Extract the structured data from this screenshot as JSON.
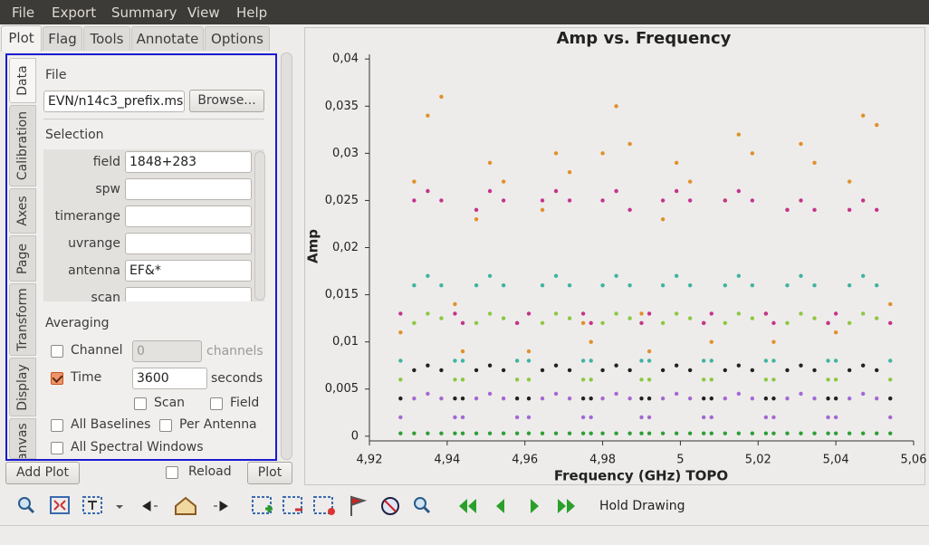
{
  "menu": [
    "File",
    "Export",
    "Summary",
    "View",
    "Help"
  ],
  "tabs": [
    "Plot",
    "Flag",
    "Tools",
    "Annotate",
    "Options"
  ],
  "side_tabs": [
    "Data",
    "Calibration",
    "Axes",
    "Page",
    "Transform",
    "Display",
    "Canvas"
  ],
  "data_tab": {
    "file_heading": "File",
    "file_path": "EVN/n14c3_prefix.ms",
    "browse": "Browse...",
    "selection_heading": "Selection",
    "fields": [
      {
        "label": "field",
        "value": "1848+283"
      },
      {
        "label": "spw"
      },
      {
        "label": "timerange"
      },
      {
        "label": "uvrange"
      },
      {
        "label": "antenna",
        "value": "EF&*"
      },
      {
        "label": "scan"
      }
    ],
    "averaging_heading": "Averaging",
    "channel": {
      "label": "Channel",
      "checked": false,
      "value": "0",
      "unit": "channels"
    },
    "time": {
      "label": "Time",
      "checked": true,
      "value": "3600",
      "unit": "seconds"
    },
    "scan": {
      "label": "Scan",
      "checked": false
    },
    "field": {
      "label": "Field",
      "checked": false
    },
    "all_baselines": {
      "label": "All Baselines",
      "checked": false
    },
    "per_antenna": {
      "label": "Per Antenna",
      "checked": false
    },
    "all_spectral_windows": {
      "label": "All Spectral Windows",
      "checked": false
    }
  },
  "buttons": {
    "add_plot": "Add Plot",
    "reload": {
      "label": "Reload",
      "checked": false
    },
    "plot": "Plot"
  },
  "toolbar": {
    "hold_drawing": "Hold Drawing"
  },
  "chart_data": {
    "type": "scatter",
    "title": "Amp vs. Frequency",
    "x_label": "Frequency (GHz) TOPO",
    "y_label": "Amp",
    "x": [
      4.928,
      4.9315,
      4.935,
      4.9385,
      4.942,
      4.944,
      4.9475,
      4.951,
      4.9545,
      4.958,
      4.961,
      4.9645,
      4.968,
      4.9715,
      4.975,
      4.977,
      4.98,
      4.9835,
      4.987,
      4.99,
      4.992,
      4.9955,
      4.999,
      5.0025,
      5.006,
      5.008,
      5.0115,
      5.015,
      5.0185,
      5.022,
      5.024,
      5.0275,
      5.031,
      5.0345,
      5.038,
      5.04,
      5.0435,
      5.047,
      5.0505,
      5.054
    ],
    "series": [
      {
        "color": "#e0902a",
        "values": [
          0.011,
          0.027,
          0.034,
          0.036,
          0.014,
          0.009,
          0.023,
          0.029,
          0.027,
          0.012,
          0.009,
          0.024,
          0.03,
          0.028,
          0.012,
          0.01,
          0.03,
          0.035,
          0.031,
          0.013,
          0.009,
          0.023,
          0.029,
          0.027,
          0.012,
          0.01,
          0.025,
          0.032,
          0.03,
          0.013,
          0.01,
          0.024,
          0.031,
          0.029,
          0.012,
          0.011,
          0.027,
          0.034,
          0.033,
          0.014
        ]
      },
      {
        "color": "#c4348c",
        "values": [
          0.013,
          0.025,
          0.026,
          0.025,
          0.013,
          0.012,
          0.024,
          0.026,
          0.025,
          0.012,
          0.013,
          0.025,
          0.026,
          0.025,
          0.013,
          0.012,
          0.025,
          0.026,
          0.024,
          0.012,
          0.013,
          0.025,
          0.026,
          0.025,
          0.012,
          0.013,
          0.025,
          0.026,
          0.025,
          0.013,
          0.012,
          0.024,
          0.025,
          0.024,
          0.012,
          0.013,
          0.024,
          0.025,
          0.024,
          0.012
        ]
      },
      {
        "color": "#3fb3a2",
        "values": [
          0.008,
          0.016,
          0.017,
          0.016,
          0.008,
          0.008,
          0.016,
          0.017,
          0.016,
          0.008,
          0.008,
          0.016,
          0.017,
          0.016,
          0.008,
          0.008,
          0.016,
          0.017,
          0.016,
          0.008,
          0.008,
          0.016,
          0.017,
          0.016,
          0.008,
          0.008,
          0.016,
          0.017,
          0.016,
          0.008,
          0.008,
          0.016,
          0.017,
          0.016,
          0.008,
          0.008,
          0.016,
          0.017,
          0.016,
          0.008
        ]
      },
      {
        "color": "#8cc840",
        "values": [
          0.006,
          0.012,
          0.013,
          0.0125,
          0.006,
          0.006,
          0.012,
          0.013,
          0.0125,
          0.006,
          0.006,
          0.012,
          0.013,
          0.0125,
          0.006,
          0.006,
          0.012,
          0.013,
          0.0125,
          0.006,
          0.006,
          0.012,
          0.013,
          0.0125,
          0.006,
          0.006,
          0.012,
          0.013,
          0.0125,
          0.006,
          0.006,
          0.012,
          0.013,
          0.0125,
          0.006,
          0.006,
          0.012,
          0.013,
          0.0125,
          0.006
        ]
      },
      {
        "color": "#222222",
        "values": [
          0.004,
          0.007,
          0.0075,
          0.007,
          0.004,
          0.004,
          0.007,
          0.0075,
          0.007,
          0.004,
          0.004,
          0.007,
          0.0075,
          0.007,
          0.004,
          0.004,
          0.007,
          0.0075,
          0.007,
          0.004,
          0.004,
          0.007,
          0.0075,
          0.007,
          0.004,
          0.004,
          0.007,
          0.0075,
          0.007,
          0.004,
          0.004,
          0.007,
          0.0075,
          0.007,
          0.004,
          0.004,
          0.007,
          0.0075,
          0.007,
          0.004
        ]
      },
      {
        "color": "#a468d4",
        "values": [
          0.002,
          0.004,
          0.0045,
          0.004,
          0.002,
          0.002,
          0.004,
          0.0045,
          0.004,
          0.002,
          0.002,
          0.004,
          0.0045,
          0.004,
          0.002,
          0.002,
          0.004,
          0.0045,
          0.004,
          0.002,
          0.002,
          0.004,
          0.0045,
          0.004,
          0.002,
          0.002,
          0.004,
          0.0045,
          0.004,
          0.002,
          0.002,
          0.004,
          0.0045,
          0.004,
          0.002,
          0.002,
          0.004,
          0.0045,
          0.004,
          0.002
        ]
      },
      {
        "color": "#2f9e36",
        "values": [
          0.0003,
          0.0003,
          0.0003,
          0.0003,
          0.0003,
          0.0003,
          0.0003,
          0.0003,
          0.0003,
          0.0003,
          0.0003,
          0.0003,
          0.0003,
          0.0003,
          0.0003,
          0.0003,
          0.0003,
          0.0003,
          0.0003,
          0.0003,
          0.0003,
          0.0003,
          0.0003,
          0.0003,
          0.0003,
          0.0003,
          0.0003,
          0.0003,
          0.0003,
          0.0003,
          0.0003,
          0.0003,
          0.0003,
          0.0003,
          0.0003,
          0.0003,
          0.0003,
          0.0003,
          0.0003,
          0.0003
        ]
      }
    ],
    "xlim": [
      4.92,
      5.06
    ],
    "ylim": [
      -0.0005,
      0.0405
    ],
    "xticks": [
      {
        "value": 4.92,
        "label": "4,92"
      },
      {
        "value": 4.94,
        "label": "4,94"
      },
      {
        "value": 4.96,
        "label": "4,96"
      },
      {
        "value": 4.98,
        "label": "4,98"
      },
      5,
      {
        "value": 5.02,
        "label": "5,02"
      },
      {
        "value": 5.04,
        "label": "5,04"
      },
      {
        "value": 5.06,
        "label": "5,06"
      }
    ],
    "yticks": [
      0,
      {
        "value": 0.005,
        "label": "0,005"
      },
      {
        "value": 0.01,
        "label": "0,01"
      },
      {
        "value": 0.015,
        "label": "0,015"
      },
      {
        "value": 0.02,
        "label": "0,02"
      },
      {
        "value": 0.025,
        "label": "0,025"
      },
      {
        "value": 0.03,
        "label": "0,03"
      },
      {
        "value": 0.035,
        "label": "0,035"
      },
      {
        "value": 0.04,
        "label": "0,04"
      }
    ]
  }
}
